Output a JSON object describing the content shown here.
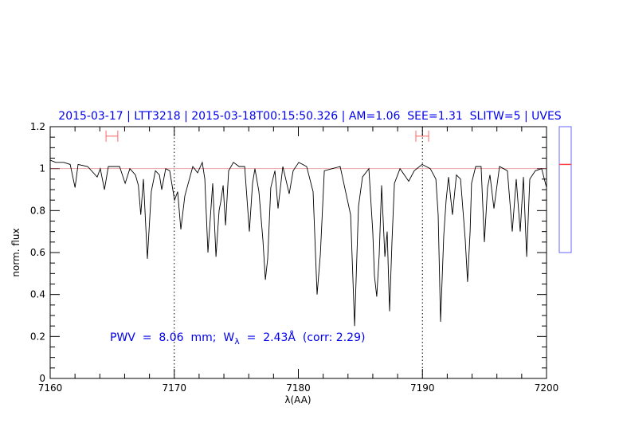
{
  "chart_data": {
    "type": "line",
    "title": "2015-03-17 | LTT3218 | 2015-03-18T00:15:50.326 | AM=1.06  SEE=1.31  SLITW=5 | UVES",
    "xlabel": "λ(AA)",
    "ylabel": "norm. flux",
    "xlim": [
      7160,
      7200
    ],
    "ylim": [
      0,
      1.2
    ],
    "x_ticks": [
      "7160",
      "7170",
      "7180",
      "7190",
      "7200"
    ],
    "y_ticks": [
      "0",
      "0.2",
      "0.4",
      "0.6",
      "0.8",
      "1",
      "1.2"
    ],
    "x_minor_step": 2,
    "y_minor_step": 0.05,
    "grid": false,
    "vertical_dotted_lines": [
      7170,
      7190
    ],
    "reference_line": {
      "y": 1.0,
      "color": "#e07070"
    },
    "annotation": {
      "text": "PWV  =  8.06  mm;  W",
      "subscript": "λ",
      "text2": "  =  2.43Å  (corr: 2.29)"
    },
    "error_bars": [
      {
        "x0": 7164.5,
        "x1": 7165.45,
        "y": 1.155
      },
      {
        "x0": 7189.47,
        "x1": 7190.5,
        "y": 1.155
      }
    ],
    "side_indicator": {
      "level_fraction": 0.7
    },
    "colors": {
      "spectrum": "#000000",
      "title": "#0000ee",
      "error_bar": "#ff6666",
      "side_box": "#6666ff",
      "side_marker": "#ff4444"
    },
    "series": [
      {
        "points": [
          [
            7160.0,
            1.04
          ],
          [
            7160.45,
            1.03
          ],
          [
            7161.09,
            1.03
          ],
          [
            7161.61,
            1.02
          ],
          [
            7162.0,
            0.91
          ],
          [
            7162.25,
            1.02
          ],
          [
            7163.02,
            1.01
          ],
          [
            7163.79,
            0.96
          ],
          [
            7164.04,
            1.0
          ],
          [
            7164.37,
            0.9
          ],
          [
            7164.69,
            1.01
          ],
          [
            7165.59,
            1.01
          ],
          [
            7166.04,
            0.93
          ],
          [
            7166.42,
            1.0
          ],
          [
            7166.87,
            0.97
          ],
          [
            7167.11,
            0.92
          ],
          [
            7167.3,
            0.78
          ],
          [
            7167.51,
            0.95
          ],
          [
            7167.83,
            0.57
          ],
          [
            7168.15,
            0.89
          ],
          [
            7168.48,
            0.99
          ],
          [
            7168.8,
            0.97
          ],
          [
            7168.99,
            0.9
          ],
          [
            7169.31,
            1.0
          ],
          [
            7169.63,
            0.99
          ],
          [
            7170.02,
            0.85
          ],
          [
            7170.27,
            0.89
          ],
          [
            7170.53,
            0.71
          ],
          [
            7170.85,
            0.87
          ],
          [
            7171.49,
            1.01
          ],
          [
            7171.88,
            0.98
          ],
          [
            7172.26,
            1.03
          ],
          [
            7172.46,
            0.95
          ],
          [
            7172.71,
            0.6
          ],
          [
            7173.1,
            0.93
          ],
          [
            7173.36,
            0.58
          ],
          [
            7173.61,
            0.8
          ],
          [
            7173.74,
            0.84
          ],
          [
            7173.94,
            0.92
          ],
          [
            7174.13,
            0.73
          ],
          [
            7174.38,
            0.99
          ],
          [
            7174.77,
            1.03
          ],
          [
            7175.22,
            1.01
          ],
          [
            7175.67,
            1.01
          ],
          [
            7176.05,
            0.7
          ],
          [
            7176.31,
            0.93
          ],
          [
            7176.5,
            1.0
          ],
          [
            7176.82,
            0.89
          ],
          [
            7177.14,
            0.66
          ],
          [
            7177.34,
            0.47
          ],
          [
            7177.53,
            0.57
          ],
          [
            7177.78,
            0.91
          ],
          [
            7178.11,
            0.99
          ],
          [
            7178.36,
            0.81
          ],
          [
            7178.75,
            1.01
          ],
          [
            7179.26,
            0.88
          ],
          [
            7179.58,
            0.99
          ],
          [
            7180.03,
            1.03
          ],
          [
            7180.67,
            1.01
          ],
          [
            7181.19,
            0.89
          ],
          [
            7181.51,
            0.4
          ],
          [
            7181.77,
            0.59
          ],
          [
            7182.09,
            0.99
          ],
          [
            7182.73,
            1.0
          ],
          [
            7183.37,
            1.01
          ],
          [
            7184.21,
            0.78
          ],
          [
            7184.53,
            0.25
          ],
          [
            7184.85,
            0.82
          ],
          [
            7185.17,
            0.96
          ],
          [
            7185.68,
            1.0
          ],
          [
            7186.0,
            0.7
          ],
          [
            7186.13,
            0.49
          ],
          [
            7186.32,
            0.39
          ],
          [
            7186.52,
            0.59
          ],
          [
            7186.71,
            0.92
          ],
          [
            7186.97,
            0.58
          ],
          [
            7187.16,
            0.7
          ],
          [
            7187.35,
            0.32
          ],
          [
            7187.55,
            0.66
          ],
          [
            7187.74,
            0.93
          ],
          [
            7188.19,
            1.0
          ],
          [
            7188.89,
            0.94
          ],
          [
            7189.34,
            0.99
          ],
          [
            7189.98,
            1.02
          ],
          [
            7190.63,
            1.0
          ],
          [
            7191.08,
            0.95
          ],
          [
            7191.27,
            0.78
          ],
          [
            7191.46,
            0.27
          ],
          [
            7191.72,
            0.68
          ],
          [
            7191.91,
            0.85
          ],
          [
            7192.1,
            0.96
          ],
          [
            7192.42,
            0.78
          ],
          [
            7192.74,
            0.97
          ],
          [
            7193.07,
            0.95
          ],
          [
            7193.45,
            0.66
          ],
          [
            7193.64,
            0.46
          ],
          [
            7193.84,
            0.7
          ],
          [
            7193.96,
            0.93
          ],
          [
            7194.29,
            1.01
          ],
          [
            7194.73,
            1.01
          ],
          [
            7194.99,
            0.65
          ],
          [
            7195.25,
            0.91
          ],
          [
            7195.44,
            0.97
          ],
          [
            7195.76,
            0.81
          ],
          [
            7196.21,
            1.01
          ],
          [
            7196.85,
            0.99
          ],
          [
            7197.24,
            0.7
          ],
          [
            7197.56,
            0.95
          ],
          [
            7197.88,
            0.7
          ],
          [
            7198.14,
            0.96
          ],
          [
            7198.4,
            0.58
          ],
          [
            7198.65,
            0.95
          ],
          [
            7199.1,
            0.99
          ],
          [
            7199.61,
            1.0
          ],
          [
            7200.0,
            0.91
          ]
        ]
      }
    ]
  }
}
